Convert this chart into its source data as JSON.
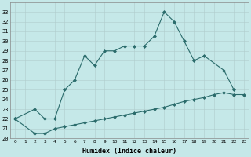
{
  "xlabel": "Humidex (Indice chaleur)",
  "background_color": "#c5e8e8",
  "grid_color": "#b0cccc",
  "line_color": "#2a6b6b",
  "x_upper": [
    0,
    2,
    3,
    4,
    5,
    6,
    7,
    8,
    9,
    10,
    11,
    12,
    13,
    14,
    15,
    16,
    17,
    18,
    19,
    21,
    22
  ],
  "y_upper": [
    22,
    23,
    22,
    22,
    25,
    26,
    28.5,
    27.5,
    29,
    29,
    29.5,
    29.5,
    29.5,
    30.5,
    33,
    32,
    30,
    28,
    28.5,
    27,
    25
  ],
  "x_lower": [
    0,
    2,
    3,
    4,
    5,
    6,
    7,
    8,
    9,
    10,
    11,
    12,
    13,
    14,
    15,
    16,
    17,
    18,
    19,
    20,
    21,
    22,
    23
  ],
  "y_lower": [
    22,
    20.5,
    20.5,
    21.0,
    21.2,
    21.4,
    21.6,
    21.8,
    22.0,
    22.2,
    22.4,
    22.6,
    22.8,
    23.0,
    23.2,
    23.5,
    23.8,
    24.0,
    24.2,
    24.5,
    24.7,
    24.5,
    24.5
  ],
  "ylim": [
    20,
    34
  ],
  "xlim": [
    -0.5,
    23.5
  ],
  "yticks": [
    20,
    21,
    22,
    23,
    24,
    25,
    26,
    27,
    28,
    29,
    30,
    31,
    32,
    33
  ],
  "xticks": [
    0,
    1,
    2,
    3,
    4,
    5,
    6,
    7,
    8,
    9,
    10,
    11,
    12,
    13,
    14,
    15,
    16,
    17,
    18,
    19,
    20,
    21,
    22,
    23
  ]
}
